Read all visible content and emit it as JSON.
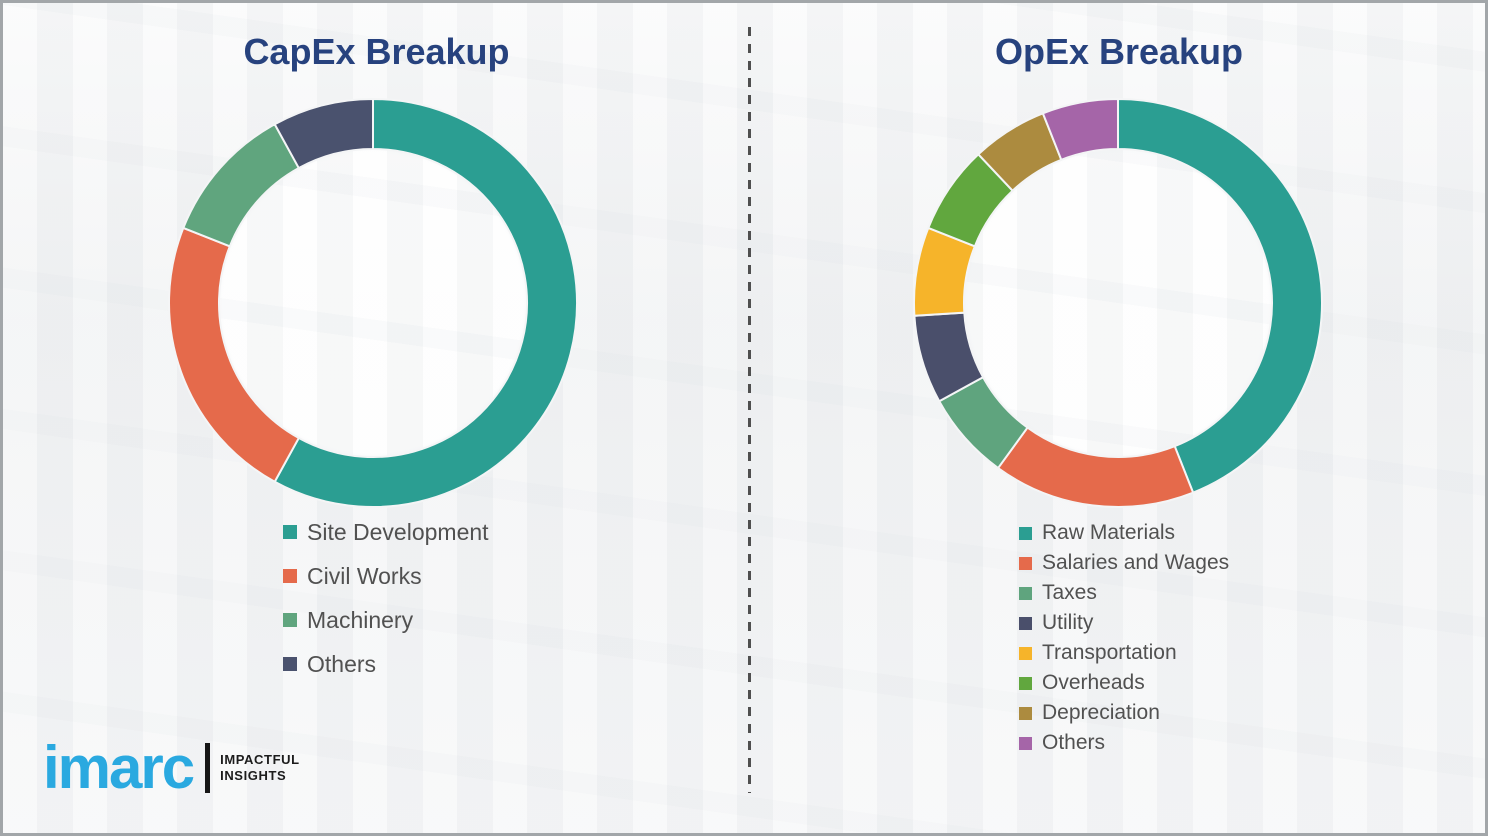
{
  "page": {
    "background_color": "#f2f3f4",
    "border_color": "#a2a6a9",
    "title_color": "#27427e",
    "legend_text_color": "#515151",
    "divider_color": "#4f4f4f"
  },
  "chart_data": [
    {
      "type": "pie",
      "subtype": "donut",
      "title": "CapEx Breakup",
      "labels": [
        "Site Development",
        "Civil Works",
        "Machinery",
        "Others"
      ],
      "values": [
        58,
        23,
        11,
        8
      ],
      "colors": [
        "#2b9e92",
        "#e56a4b",
        "#60a57e",
        "#4a526e"
      ],
      "start_angle_deg": 0,
      "direction": "clockwise",
      "outer_radius_px": 205,
      "inner_radius_px": 155,
      "legend_position": "below-left"
    },
    {
      "type": "pie",
      "subtype": "donut",
      "title": "OpEx Breakup",
      "labels": [
        "Raw Materials",
        "Salaries and Wages",
        "Taxes",
        "Utility",
        "Transportation",
        "Overheads",
        "Depreciation",
        "Others"
      ],
      "values": [
        44,
        16,
        7,
        7,
        7,
        7,
        6,
        6
      ],
      "colors": [
        "#2b9e92",
        "#e56a4b",
        "#5fa47e",
        "#4a4f6b",
        "#f6b42a",
        "#61a73e",
        "#ac8b3f",
        "#a565a8"
      ],
      "start_angle_deg": 0,
      "direction": "clockwise",
      "outer_radius_px": 205,
      "inner_radius_px": 155,
      "legend_position": "below-left"
    }
  ],
  "logo": {
    "brand": "imarc",
    "brand_color": "#2aa9e0",
    "tagline_line1": "IMPACTFUL",
    "tagline_line2": "INSIGHTS"
  }
}
